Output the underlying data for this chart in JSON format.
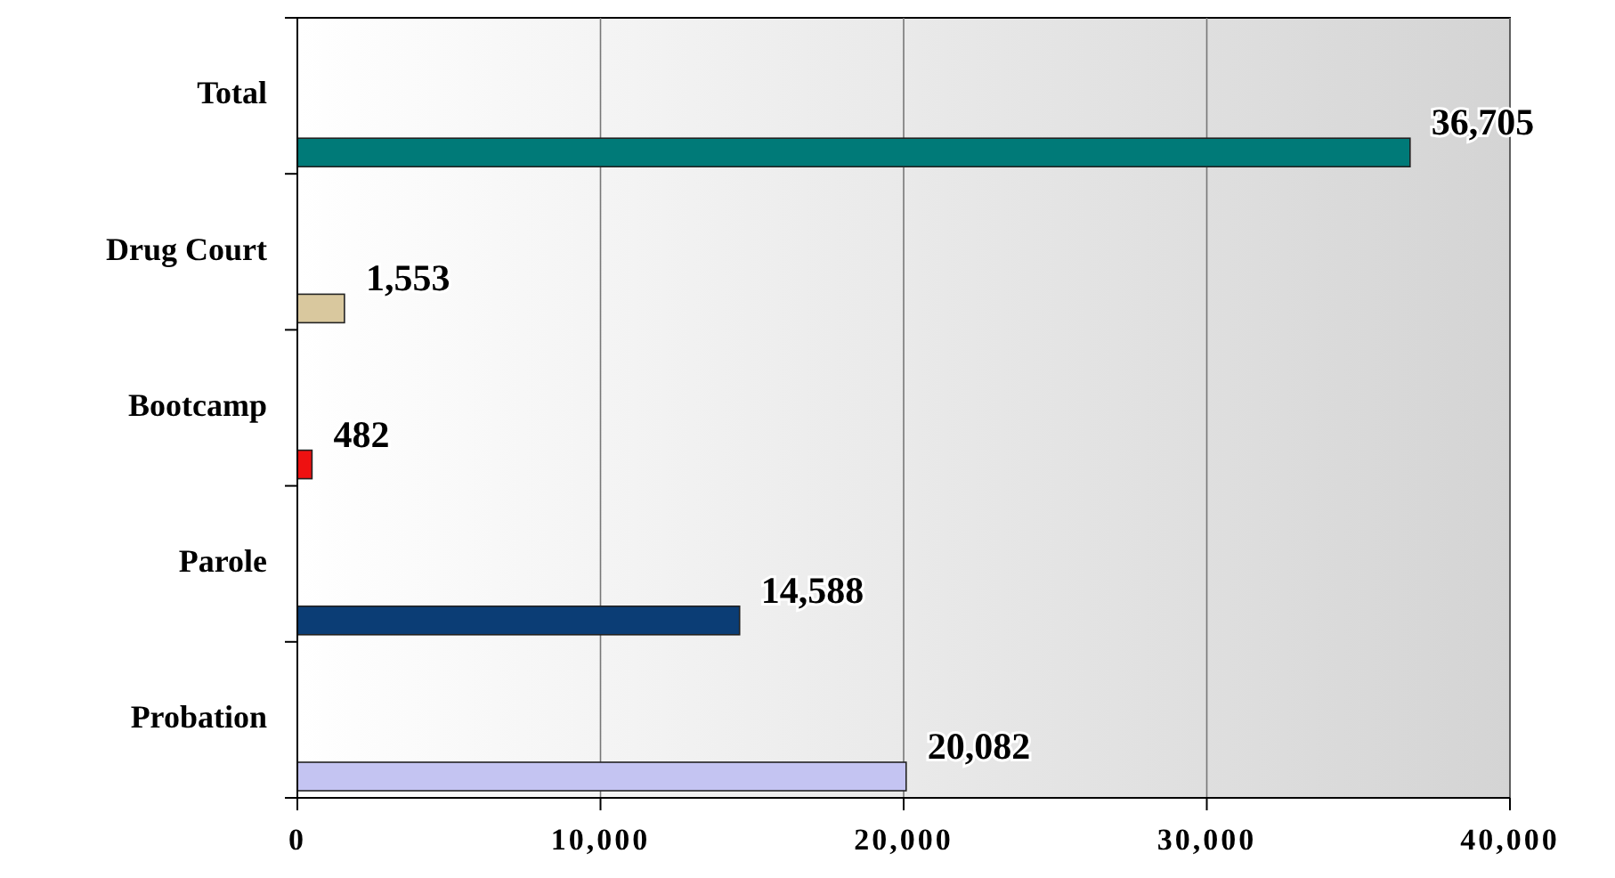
{
  "chart_data": {
    "type": "bar",
    "orientation": "horizontal",
    "categories": [
      "Total",
      "Drug Court",
      "Bootcamp",
      "Parole",
      "Probation"
    ],
    "values": [
      36705,
      1553,
      482,
      14588,
      20082
    ],
    "colors": [
      "#007a78",
      "#d9c89e",
      "#ee1111",
      "#0b3d75",
      "#c4c4f2"
    ],
    "value_labels": [
      "36,705",
      "1,553",
      "482",
      "14,588",
      "20,082"
    ],
    "xlim": [
      0,
      40000
    ],
    "xticks": [
      {
        "value": 0,
        "label": "0"
      },
      {
        "value": 10000,
        "label": "10,000"
      },
      {
        "value": 20000,
        "label": "20,000"
      },
      {
        "value": 30000,
        "label": "30,000"
      },
      {
        "value": 40000,
        "label": "40,000"
      }
    ],
    "grid": "x"
  }
}
